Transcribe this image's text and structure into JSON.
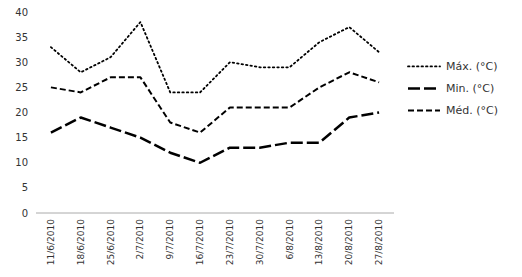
{
  "chart_data": {
    "type": "line",
    "categories": [
      "11/6/2010",
      "18/6/2010",
      "25/6/2010",
      "2/7/2010",
      "9/7/2010",
      "16/7/2010",
      "23/7/2010",
      "30/7/2010",
      "6/8/2010",
      "13/8/2010",
      "20/8/2010",
      "27/8/2010"
    ],
    "series": [
      {
        "name": "Máx. (°C)",
        "color": "#000000",
        "line_style": "dotted",
        "values": [
          33,
          28,
          31,
          38,
          24,
          24,
          30,
          29,
          29,
          34,
          37,
          32
        ]
      },
      {
        "name": "Min. (°C)",
        "color": "#000000",
        "line_style": "long-dashed",
        "values": [
          16,
          19,
          17,
          15,
          12,
          10,
          13,
          13,
          14,
          14,
          19,
          20
        ]
      },
      {
        "name": "Méd. (°C)",
        "color": "#000000",
        "line_style": "dashed",
        "values": [
          25,
          24,
          27,
          27,
          18,
          16,
          21,
          21,
          21,
          25,
          28,
          26
        ]
      }
    ],
    "ylim": [
      0,
      40
    ],
    "yticks": [
      0,
      5,
      10,
      15,
      20,
      25,
      30,
      35,
      40
    ],
    "grid": false,
    "legend": "right"
  }
}
